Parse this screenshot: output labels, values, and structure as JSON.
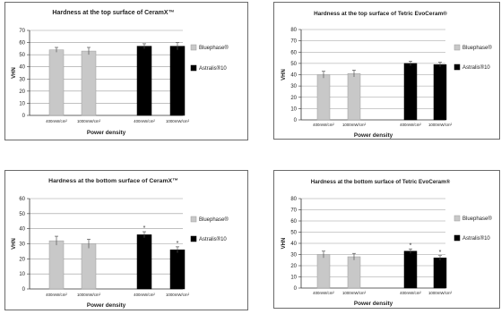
{
  "chart_data": [
    {
      "type": "bar",
      "title": "Hardness at the top surface of CeramX™",
      "xlabel": "Power density",
      "ylabel": "VHN",
      "ylim": [
        0,
        70
      ],
      "yticks": [
        0,
        10,
        20,
        30,
        40,
        50,
        60,
        70
      ],
      "categories": [
        "400mW/cm²",
        "1000mW/cm²",
        "400mW/cm²",
        "1000mW/cm²"
      ],
      "series": [
        {
          "name": "Bluephase®",
          "color": "#c8c8c8",
          "values": [
            54,
            53,
            null,
            null
          ],
          "errors": [
            2,
            3,
            null,
            null
          ]
        },
        {
          "name": "Astralis®10",
          "color": "#000000",
          "values": [
            null,
            null,
            57,
            57
          ],
          "errors": [
            null,
            null,
            2,
            3
          ]
        }
      ],
      "annotations": [
        "",
        "",
        "",
        ""
      ],
      "grid": true,
      "legend": "right"
    },
    {
      "type": "bar",
      "title": "Hardness at the top surface of Tetric EvoCeram®",
      "xlabel": "Power density",
      "ylabel": "VHN",
      "ylim": [
        0,
        80
      ],
      "yticks": [
        0,
        10,
        20,
        30,
        40,
        50,
        60,
        70,
        80
      ],
      "categories": [
        "400mW/cm²",
        "1000mW/cm²",
        "400mW/cm²",
        "1000mW/cm²"
      ],
      "series": [
        {
          "name": "Bluephase®",
          "color": "#c8c8c8",
          "values": [
            40,
            41,
            null,
            null
          ],
          "errors": [
            3,
            3,
            null,
            null
          ]
        },
        {
          "name": "Astralis®10",
          "color": "#000000",
          "values": [
            null,
            null,
            50,
            49
          ],
          "errors": [
            null,
            null,
            2,
            2
          ]
        }
      ],
      "annotations": [
        "",
        "",
        "",
        ""
      ],
      "grid": true,
      "legend": "right"
    },
    {
      "type": "bar",
      "title": "Hardness at the bottom surface of CeramX™",
      "xlabel": "Power density",
      "ylabel": "VHN",
      "ylim": [
        0,
        60
      ],
      "yticks": [
        0,
        10,
        20,
        30,
        40,
        50,
        60
      ],
      "categories": [
        "400mW/cm²",
        "1000mW/cm²",
        "400mW/cm²",
        "1000mW/cm²"
      ],
      "series": [
        {
          "name": "Bluephase®",
          "color": "#c8c8c8",
          "values": [
            32,
            30,
            null,
            null
          ],
          "errors": [
            3,
            3,
            null,
            null
          ]
        },
        {
          "name": "Astralis®10",
          "color": "#000000",
          "values": [
            null,
            null,
            36,
            26
          ],
          "errors": [
            null,
            null,
            2,
            2
          ]
        }
      ],
      "annotations": [
        "",
        "",
        "*",
        "*"
      ],
      "grid": true,
      "legend": "right"
    },
    {
      "type": "bar",
      "title": "Hardness at the bottom surface of Tetric EvoCeram®",
      "xlabel": "Power density",
      "ylabel": "VHN",
      "ylim": [
        0,
        80
      ],
      "yticks": [
        0,
        10,
        20,
        30,
        40,
        50,
        60,
        70,
        80
      ],
      "categories": [
        "400mW/cm²",
        "1000mW/cm²",
        "400mW/cm²",
        "1000mW/cm²"
      ],
      "series": [
        {
          "name": "Bluephase®",
          "color": "#c8c8c8",
          "values": [
            30,
            28,
            null,
            null
          ],
          "errors": [
            3,
            3,
            null,
            null
          ]
        },
        {
          "name": "Astralis®10",
          "color": "#000000",
          "values": [
            null,
            null,
            33,
            27
          ],
          "errors": [
            null,
            null,
            2,
            2
          ]
        }
      ],
      "annotations": [
        "",
        "",
        "*",
        "*"
      ],
      "grid": true,
      "legend": "right"
    }
  ]
}
